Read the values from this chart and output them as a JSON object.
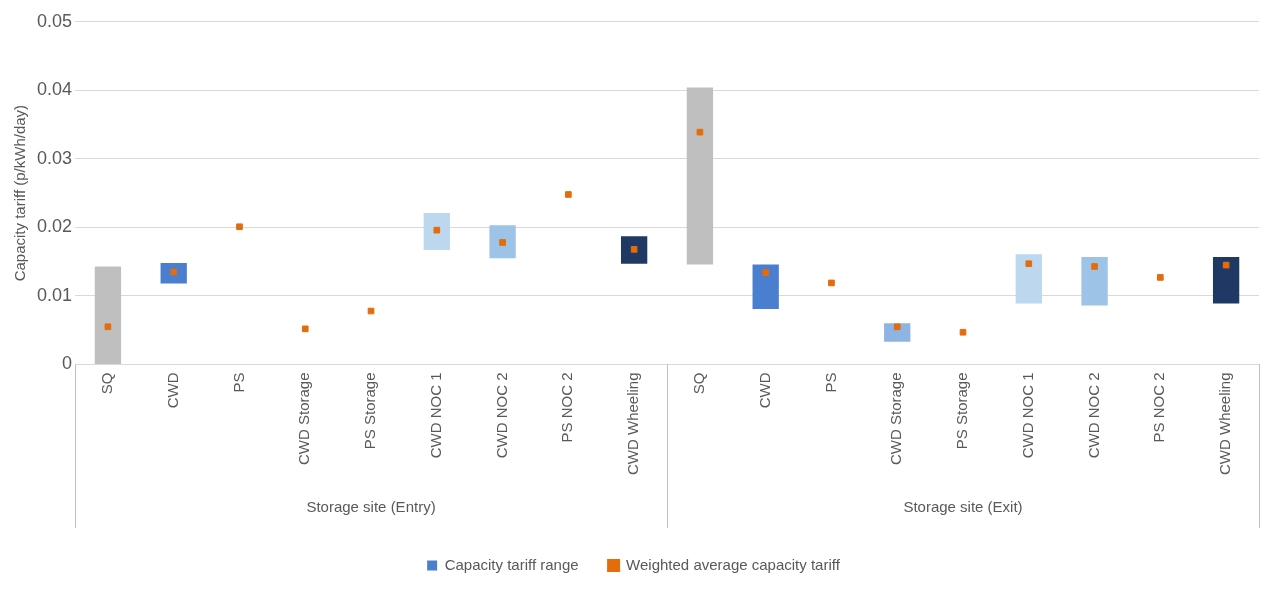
{
  "chart_data": {
    "type": "bar",
    "ylabel": "Capacity tariff (p/kWh/day)",
    "categories": [
      "SQ",
      "CWD",
      "PS",
      "CWD Storage",
      "PS Storage",
      "CWD NOC 1",
      "CWD NOC 2",
      "PS NOC 2",
      "CWD Wheeling",
      "SQ",
      "CWD",
      "PS",
      "CWD Storage",
      "PS Storage",
      "CWD NOC 1",
      "CWD NOC 2",
      "PS NOC 2",
      "CWD Wheeling"
    ],
    "series": [
      {
        "name": "Capacity tariff range",
        "color": "#4a7fd0",
        "colors": [
          "#bfbfbf",
          "#4a7fd0",
          "#4a7fd0",
          "#4a7fd0",
          "#4a7fd0",
          "#bdd7ee",
          "#9dc3e6",
          "#4a7fd0",
          "#1f3864",
          "#bfbfbf",
          "#4a7fd0",
          "#4a7fd0",
          "#8db4e2",
          "#4a7fd0",
          "#bdd7ee",
          "#9dc3e6",
          "#4a7fd0",
          "#1f3864"
        ],
        "base": [
          0,
          0.0118,
          null,
          null,
          null,
          0.0167,
          0.0155,
          null,
          0.0147,
          0.0146,
          0.0081,
          null,
          0.0033,
          null,
          0.0089,
          0.0086,
          null,
          0.0089
        ],
        "values": [
          0.0143,
          0.003,
          null,
          null,
          null,
          0.0054,
          0.0048,
          null,
          0.004,
          0.0258,
          0.0065,
          null,
          0.0027,
          null,
          0.0072,
          0.0071,
          null,
          0.0068
        ]
      },
      {
        "name": "Weighted average capacity tariff",
        "type": "scatter",
        "color": "#e46c0a",
        "marker": "square",
        "values": [
          0.0055,
          0.0135,
          0.0201,
          0.0052,
          0.0078,
          0.0196,
          0.0178,
          0.0248,
          0.0168,
          0.0339,
          0.0134,
          0.0119,
          0.0055,
          0.0047,
          0.0147,
          0.0143,
          0.0127,
          0.0145
        ]
      }
    ],
    "ylim": [
      0,
      0.05
    ],
    "yticks": [
      0,
      0.01,
      0.02,
      0.03,
      0.04,
      0.05
    ],
    "grid": "y",
    "legend": "bottom",
    "annotations": [
      "Storage site (Entry)",
      "Storage site (Exit)"
    ]
  }
}
